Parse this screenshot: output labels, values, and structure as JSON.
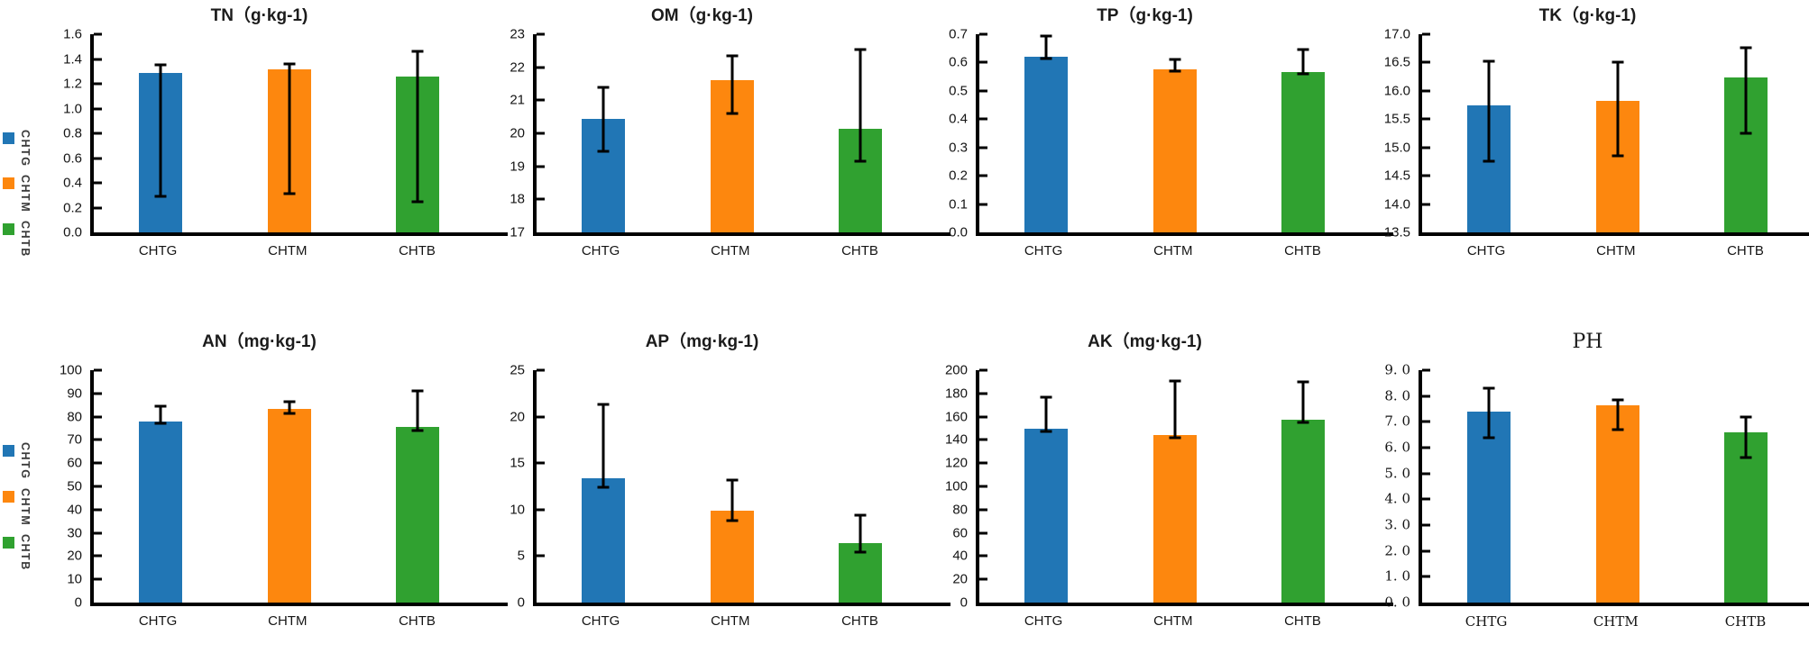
{
  "palette": {
    "bar_colors": [
      "#2176B5",
      "#FD870E",
      "#30A130"
    ],
    "axis_color": "#000000",
    "text_color": "#141414"
  },
  "legend": {
    "items": [
      {
        "label": "CHTG",
        "color": "#2176B5"
      },
      {
        "label": "CHTM",
        "color": "#FD870E"
      },
      {
        "label": "CHTB",
        "color": "#30A130"
      }
    ]
  },
  "chart_data": [
    {
      "id": "tn",
      "type": "bar",
      "title": "TN（g·kg-1)",
      "serif": false,
      "categories": [
        "CHTG",
        "CHTM",
        "CHTB"
      ],
      "values": [
        1.29,
        1.32,
        1.26
      ],
      "err_low": [
        0.29,
        0.31,
        0.25
      ],
      "err_high": [
        1.35,
        1.36,
        1.46
      ],
      "ylim": [
        0,
        1.6
      ],
      "ytick_labels": [
        "0.0",
        "0.2",
        "0.4",
        "0.6",
        "0.8",
        "1.0",
        "1.2",
        "1.4",
        "1.6"
      ],
      "legend_position": "left",
      "grid": false
    },
    {
      "id": "om",
      "type": "bar",
      "title": "OM（g·kg-1)",
      "serif": false,
      "categories": [
        "CHTG",
        "CHTM",
        "CHTB"
      ],
      "values": [
        20.45,
        21.6,
        20.15
      ],
      "err_low": [
        19.45,
        20.6,
        19.15
      ],
      "err_high": [
        21.4,
        22.35,
        22.55
      ],
      "ylim": [
        17,
        23
      ],
      "ytick_labels": [
        "17",
        "18",
        "19",
        "20",
        "21",
        "22",
        "23"
      ],
      "legend_position": "none",
      "grid": false
    },
    {
      "id": "tp",
      "type": "bar",
      "title": "TP（g·kg-1)",
      "serif": false,
      "categories": [
        "CHTG",
        "CHTM",
        "CHTB"
      ],
      "values": [
        0.62,
        0.575,
        0.565
      ],
      "err_low": [
        0.615,
        0.57,
        0.56
      ],
      "err_high": [
        0.695,
        0.61,
        0.645
      ],
      "ylim": [
        0,
        0.7
      ],
      "ytick_labels": [
        "0.0",
        "0.1",
        "0.2",
        "0.3",
        "0.4",
        "0.5",
        "0.6",
        "0.7"
      ],
      "legend_position": "none",
      "grid": false
    },
    {
      "id": "tk",
      "type": "bar",
      "title": "TK（g·kg-1)",
      "serif": false,
      "categories": [
        "CHTG",
        "CHTM",
        "CHTB"
      ],
      "values": [
        15.75,
        15.83,
        16.23
      ],
      "err_low": [
        14.75,
        14.85,
        15.25
      ],
      "err_high": [
        16.52,
        16.5,
        16.76
      ],
      "ylim": [
        13.5,
        17.0
      ],
      "ytick_labels": [
        "13.5",
        "14.0",
        "14.5",
        "15.0",
        "15.5",
        "16.0",
        "16.5",
        "17.0"
      ],
      "legend_position": "none",
      "grid": false
    },
    {
      "id": "an",
      "type": "bar",
      "title": "AN（mg·kg-1)",
      "serif": false,
      "categories": [
        "CHTG",
        "CHTM",
        "CHTB"
      ],
      "values": [
        78,
        83.5,
        75.5
      ],
      "err_low": [
        77,
        81.5,
        74
      ],
      "err_high": [
        84.5,
        86.5,
        91
      ],
      "ylim": [
        0,
        100
      ],
      "ytick_labels": [
        "0",
        "10",
        "20",
        "30",
        "40",
        "50",
        "60",
        "70",
        "80",
        "90",
        "100"
      ],
      "legend_position": "left",
      "grid": false
    },
    {
      "id": "ap",
      "type": "bar",
      "title": "AP（mg·kg-1)",
      "serif": false,
      "categories": [
        "CHTG",
        "CHTM",
        "CHTB"
      ],
      "values": [
        13.4,
        9.9,
        6.4
      ],
      "err_low": [
        12.4,
        8.8,
        5.4
      ],
      "err_high": [
        21.3,
        13.2,
        9.4
      ],
      "ylim": [
        0,
        25
      ],
      "ytick_labels": [
        "0",
        "5",
        "10",
        "15",
        "20",
        "25"
      ],
      "legend_position": "none",
      "grid": false
    },
    {
      "id": "ak",
      "type": "bar",
      "title": "AK（mg·kg-1)",
      "serif": false,
      "categories": [
        "CHTG",
        "CHTM",
        "CHTB"
      ],
      "values": [
        150,
        144,
        157
      ],
      "err_low": [
        147,
        142,
        155
      ],
      "err_high": [
        177,
        191,
        190
      ],
      "ylim": [
        0,
        200
      ],
      "ytick_labels": [
        "0",
        "20",
        "40",
        "60",
        "80",
        "100",
        "120",
        "140",
        "160",
        "180",
        "200"
      ],
      "legend_position": "none",
      "grid": false
    },
    {
      "id": "ph",
      "type": "bar",
      "title": "PH",
      "serif": true,
      "categories": [
        "CHTG",
        "CHTM",
        "CHTB"
      ],
      "values": [
        7.4,
        7.65,
        6.6
      ],
      "err_low": [
        6.4,
        6.7,
        5.6
      ],
      "err_high": [
        8.3,
        7.85,
        7.2
      ],
      "ylim": [
        0,
        9
      ],
      "ytick_labels": [
        "0. 0",
        "1. 0",
        "2. 0",
        "3. 0",
        "4. 0",
        "5. 0",
        "6. 0",
        "7. 0",
        "8. 0",
        "9. 0"
      ],
      "legend_position": "none",
      "grid": false
    }
  ]
}
